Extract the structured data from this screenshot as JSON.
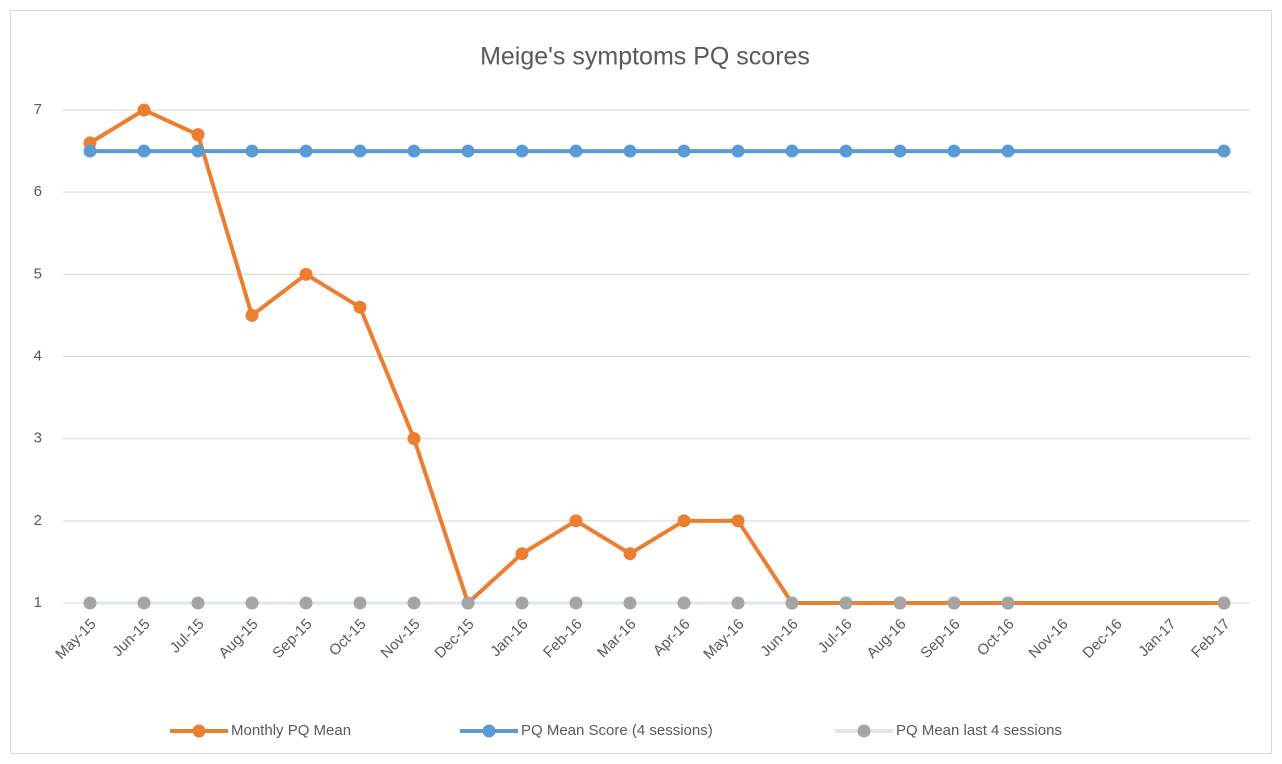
{
  "chart_data": {
    "type": "line",
    "title": "Meige's symptoms PQ scores",
    "categories": [
      "May-15",
      "Jun-15",
      "Jul-15",
      "Aug-15",
      "Sep-15",
      "Oct-15",
      "Nov-15",
      "Dec-15",
      "Jan-16",
      "Feb-16",
      "Mar-16",
      "Apr-16",
      "May-16",
      "Jun-16",
      "Jul-16",
      "Aug-16",
      "Sep-16",
      "Oct-16",
      "Nov-16",
      "Dec-16",
      "Jan-17",
      "Feb-17"
    ],
    "series": [
      {
        "name": "Monthly PQ Mean",
        "color": "#ed7d31",
        "line_color": "#ed7d31",
        "values": [
          6.6,
          7,
          6.7,
          4.5,
          5,
          4.6,
          3,
          1,
          1.6,
          2,
          1.6,
          2,
          2,
          1,
          1,
          1,
          1,
          1,
          null,
          null,
          null,
          1
        ]
      },
      {
        "name": "PQ Mean Score (4 sessions)",
        "color": "#5b9bd5",
        "line_color": "#5b9bd5",
        "values": [
          6.5,
          6.5,
          6.5,
          6.5,
          6.5,
          6.5,
          6.5,
          6.5,
          6.5,
          6.5,
          6.5,
          6.5,
          6.5,
          6.5,
          6.5,
          6.5,
          6.5,
          6.5,
          null,
          null,
          null,
          6.5
        ]
      },
      {
        "name": "PQ Mean last 4 sessions",
        "color": "#a5a5a5",
        "line_color": "#dde7f3",
        "values": [
          1,
          1,
          1,
          1,
          1,
          1,
          1,
          1,
          1,
          1,
          1,
          1,
          1,
          1,
          1,
          1,
          1,
          1,
          null,
          null,
          null,
          1
        ]
      }
    ],
    "ylim": [
      1,
      7
    ],
    "yticks": [
      1,
      2,
      3,
      4,
      5,
      6,
      7
    ],
    "grid": true,
    "legend": "bottom",
    "connect_gaps": true
  }
}
